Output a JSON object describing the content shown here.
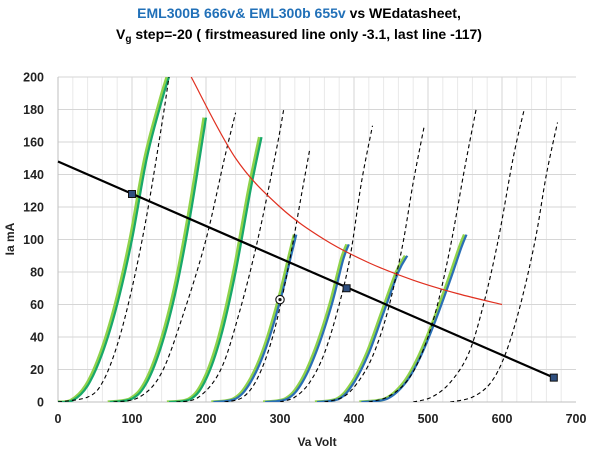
{
  "chart_data": {
    "type": "line",
    "title_parts": [
      {
        "text": "EML300B 666v& EML300b 655v",
        "color": "#2170b8"
      },
      {
        "text": " vs WEdatasheet,",
        "color": "#000000"
      }
    ],
    "subtitle_parts": [
      {
        "text": "V",
        "color": "#000000"
      },
      {
        "text": "g",
        "color": "#000000",
        "sub": true
      },
      {
        "text": " step=-20 ( firstmeasured  line only -3.1, last line -117)",
        "color": "#000000"
      }
    ],
    "xlabel": "Va Volt",
    "ylabel": "Ia mA",
    "xlim": [
      0,
      700
    ],
    "ylim": [
      0,
      200
    ],
    "x_ticks": [
      0,
      100,
      200,
      300,
      400,
      500,
      600,
      700
    ],
    "y_ticks": [
      0,
      20,
      40,
      60,
      80,
      100,
      120,
      140,
      160,
      180,
      200
    ],
    "grid": "vertical-minor-and-horizontal",
    "colors": {
      "eml_green": "#18a86b",
      "eml_light": "#8fd24a",
      "eml_blue": "#2a6fb5",
      "datasheet": "#000000",
      "load_line": "#000000",
      "dissipation": "#e03020"
    },
    "datasheet_curves": [
      {
        "x": [
          0,
          40,
          60,
          80,
          100,
          120,
          140,
          150
        ],
        "y": [
          0,
          3,
          12,
          35,
          70,
          115,
          170,
          200
        ]
      },
      {
        "x": [
          75,
          110,
          140,
          170,
          200,
          225,
          240
        ],
        "y": [
          0,
          3,
          18,
          55,
          100,
          150,
          178
        ]
      },
      {
        "x": [
          160,
          190,
          220,
          245,
          270,
          295,
          305
        ],
        "y": [
          0,
          3,
          20,
          55,
          100,
          155,
          180
        ]
      },
      {
        "x": [
          225,
          250,
          270,
          290,
          310,
          330,
          340
        ],
        "y": [
          0,
          3,
          15,
          40,
          80,
          130,
          155
        ]
      },
      {
        "x": [
          300,
          320,
          340,
          360,
          380,
          395,
          410,
          425
        ],
        "y": [
          0,
          3,
          12,
          30,
          60,
          90,
          135,
          170
        ]
      },
      {
        "x": [
          360,
          385,
          405,
          425,
          445,
          465,
          480,
          495
        ],
        "y": [
          0,
          3,
          12,
          28,
          55,
          95,
          135,
          170
        ]
      },
      {
        "x": [
          420,
          445,
          470,
          490,
          510,
          530,
          550,
          565
        ],
        "y": [
          0,
          3,
          12,
          28,
          55,
          95,
          145,
          180
        ]
      },
      {
        "x": [
          480,
          505,
          530,
          555,
          575,
          595,
          615,
          630
        ],
        "y": [
          0,
          3,
          12,
          30,
          60,
          100,
          150,
          180
        ]
      },
      {
        "x": [
          530,
          560,
          585,
          605,
          625,
          645,
          660,
          675
        ],
        "y": [
          0,
          3,
          12,
          30,
          60,
          100,
          140,
          172
        ]
      }
    ],
    "measured_curves": [
      {
        "x": [
          0,
          20,
          40,
          60,
          80,
          100,
          120,
          140,
          150
        ],
        "y": [
          0,
          1,
          10,
          30,
          60,
          100,
          150,
          185,
          200
        ]
      },
      {
        "x": [
          70,
          100,
          120,
          140,
          160,
          180,
          200
        ],
        "y": [
          0,
          2,
          12,
          35,
          70,
          118,
          175
        ]
      },
      {
        "x": [
          150,
          180,
          200,
          220,
          240,
          260,
          275
        ],
        "y": [
          0,
          2,
          14,
          40,
          80,
          130,
          163
        ]
      },
      {
        "x": [
          210,
          240,
          260,
          280,
          300,
          315,
          322
        ],
        "y": [
          0,
          2,
          12,
          32,
          62,
          90,
          103
        ]
      },
      {
        "x": [
          280,
          310,
          330,
          350,
          370,
          385,
          393
        ],
        "y": [
          0,
          2,
          12,
          32,
          60,
          87,
          97
        ]
      },
      {
        "x": [
          350,
          380,
          400,
          420,
          440,
          460,
          472
        ],
        "y": [
          0,
          2,
          12,
          30,
          55,
          80,
          90
        ]
      },
      {
        "x": [
          410,
          445,
          470,
          490,
          510,
          530,
          545,
          552
        ],
        "y": [
          0,
          2,
          12,
          28,
          50,
          75,
          95,
          103
        ]
      }
    ],
    "load_line": {
      "x": [
        0,
        670
      ],
      "y": [
        148,
        15
      ]
    },
    "load_markers": [
      {
        "x": 100,
        "y": 128,
        "shape": "square"
      },
      {
        "x": 390,
        "y": 70,
        "shape": "square"
      },
      {
        "x": 670,
        "y": 15,
        "shape": "square"
      },
      {
        "x": 300,
        "y": 63,
        "shape": "circle"
      }
    ],
    "dissipation_curve": {
      "x": [
        180,
        240,
        300,
        360,
        420,
        480,
        540,
        600
      ],
      "y": [
        200,
        150,
        120,
        100,
        85.7,
        75,
        66.7,
        60
      ]
    }
  }
}
